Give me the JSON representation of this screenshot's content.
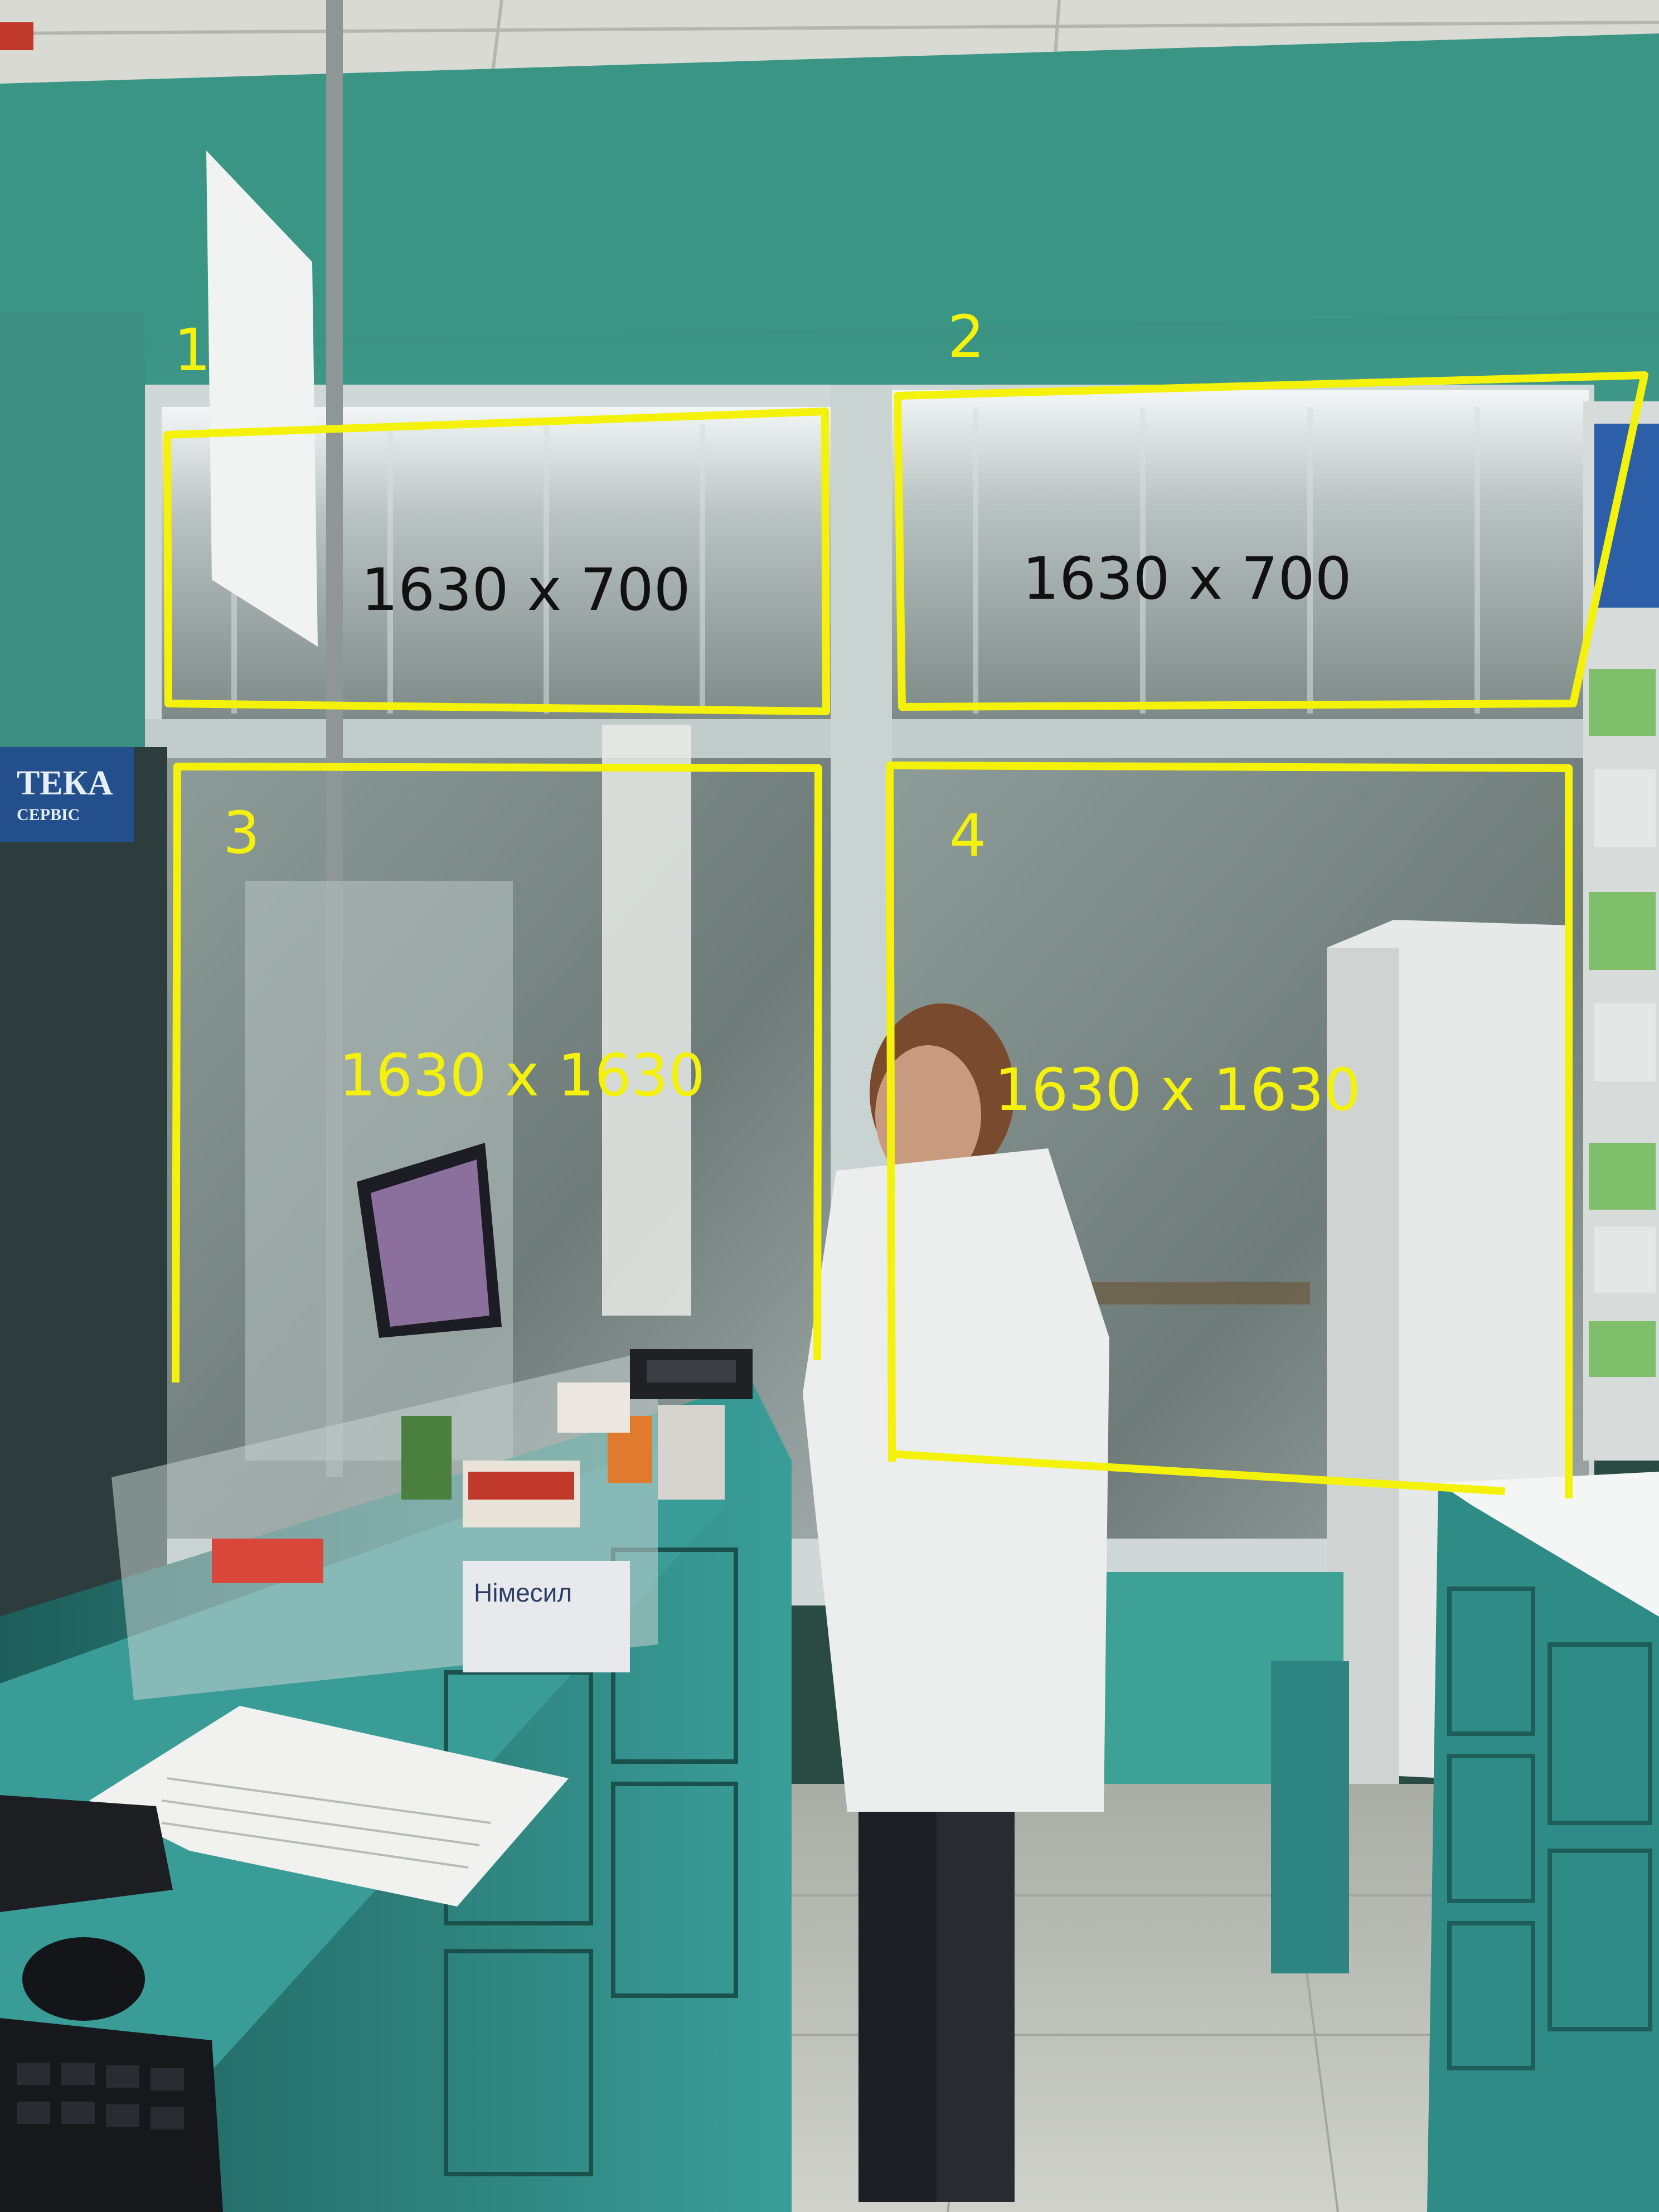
{
  "annotations": {
    "color": "#f4f20a",
    "regions": [
      {
        "number": "1",
        "dimensions": "1630 x 700",
        "dimension_text_color": "#111111"
      },
      {
        "number": "2",
        "dimensions": "1630 x 700",
        "dimension_text_color": "#111111"
      },
      {
        "number": "3",
        "dimensions": "1630 x 1630",
        "dimension_text_color": "#f4f20a"
      },
      {
        "number": "4",
        "dimensions": "1630 x 1630",
        "dimension_text_color": "#f4f20a"
      }
    ]
  },
  "scene": {
    "sign_text": "ТЕКА",
    "sign_subtext": "СЕРВІС",
    "box_label": "Німесил",
    "colors": {
      "wall": "#3f9c8a",
      "ceiling": "#dcdcd6",
      "counter": "#2f8a86",
      "window_frame": "#cfd8d6",
      "window_glass": "#9aa9a6",
      "floor": "#b9bcb4"
    }
  }
}
